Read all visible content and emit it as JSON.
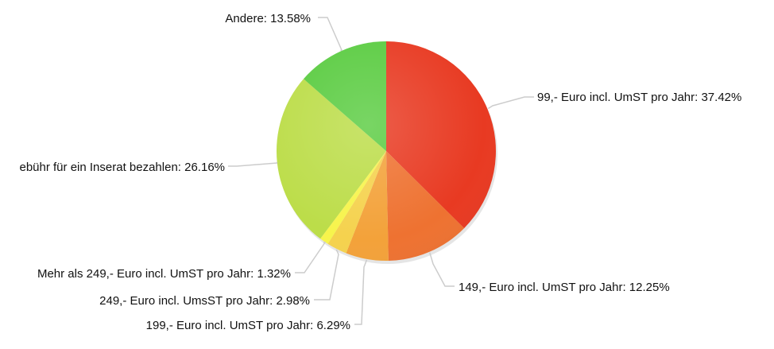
{
  "chart_data": {
    "type": "pie",
    "title": "",
    "slices": [
      {
        "label": "99,- Euro incl. UmST pro Jahr",
        "value": 37.42,
        "display": "99,- Euro incl. UmST pro Jahr: 37.42%",
        "color": "#e83a22"
      },
      {
        "label": "149,- Euro incl. UmST pro Jahr",
        "value": 12.25,
        "display": "149,- Euro incl. UmST pro Jahr: 12.25%",
        "color": "#ee7231"
      },
      {
        "label": "199,- Euro incl. UmST pro Jahr",
        "value": 6.29,
        "display": "199,- Euro incl. UmST pro Jahr: 6.29%",
        "color": "#f3a23a"
      },
      {
        "label": "249,- Euro incl. UmsST pro Jahr",
        "value": 2.98,
        "display": "249,- Euro incl. UmsST pro Jahr: 2.98%",
        "color": "#f5d24e"
      },
      {
        "label": "Mehr als 249,- Euro incl. UmST pro Jahr",
        "value": 1.32,
        "display": "Mehr als 249,- Euro incl. UmST pro Jahr: 1.32%",
        "color": "#f7f44c"
      },
      {
        "label": "…ebühr für ein Inserat bezahlen",
        "value": 26.16,
        "display": "ebühr für ein Inserat bezahlen: 26.16%",
        "color": "#bcdd49"
      },
      {
        "label": "Andere",
        "value": 13.58,
        "display": "Andere: 13.58%",
        "color": "#5bcc42"
      }
    ]
  }
}
